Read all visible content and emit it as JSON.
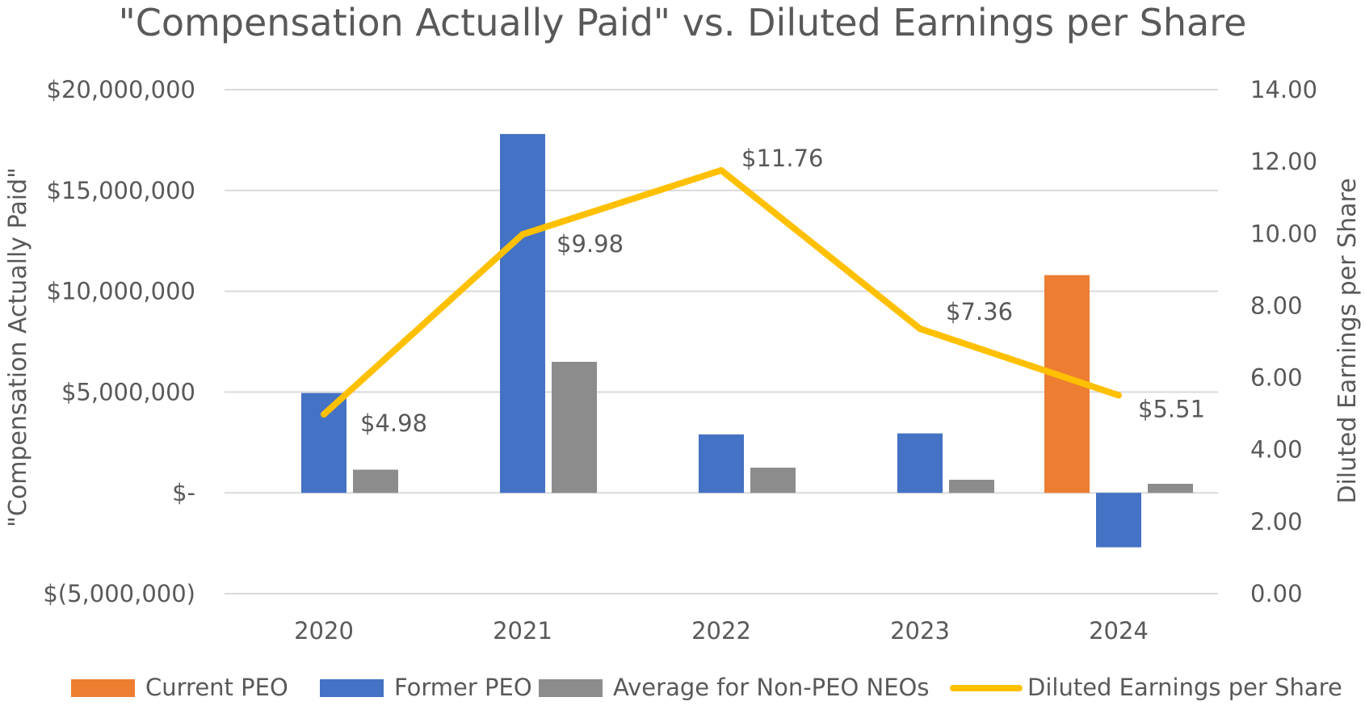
{
  "chart_data": {
    "type": "bar",
    "title": "\"Compensation Actually Paid\" vs. Diluted Earnings per Share",
    "categories": [
      "2020",
      "2021",
      "2022",
      "2023",
      "2024"
    ],
    "ylabel": "\"Compensation Actually Paid\"",
    "y2label": "Diluted Earnings per Share",
    "ylim": [
      -5000000,
      20000000
    ],
    "y2lim": [
      0,
      14
    ],
    "y_ticks": [
      "$20,000,000",
      "$15,000,000",
      "$10,000,000",
      "$5,000,000",
      "$-",
      "$(5,000,000)"
    ],
    "y2_ticks": [
      "14.00",
      "12.00",
      "10.00",
      "8.00",
      "6.00",
      "4.00",
      "2.00",
      "0.00"
    ],
    "grid": true,
    "legend_position": "bottom",
    "series": [
      {
        "name": "Current PEO",
        "type": "bar",
        "axis": "left",
        "color": "#ed7d31",
        "values": [
          null,
          null,
          null,
          null,
          10800000
        ]
      },
      {
        "name": "Former PEO",
        "type": "bar",
        "axis": "left",
        "color": "#4472c4",
        "values": [
          4950000,
          17800000,
          2900000,
          2950000,
          -2700000
        ]
      },
      {
        "name": "Average for Non-PEO NEOs",
        "type": "bar",
        "axis": "left",
        "color": "#8c8c8c",
        "values": [
          1150000,
          6500000,
          1250000,
          650000,
          450000
        ]
      },
      {
        "name": "Diluted Earnings per Share",
        "type": "line",
        "axis": "right",
        "color": "#ffc000",
        "values": [
          4.98,
          9.98,
          11.76,
          7.36,
          5.51
        ],
        "data_labels": [
          "$4.98",
          "$9.98",
          "$11.76",
          "$7.36",
          "$5.51"
        ]
      }
    ]
  }
}
